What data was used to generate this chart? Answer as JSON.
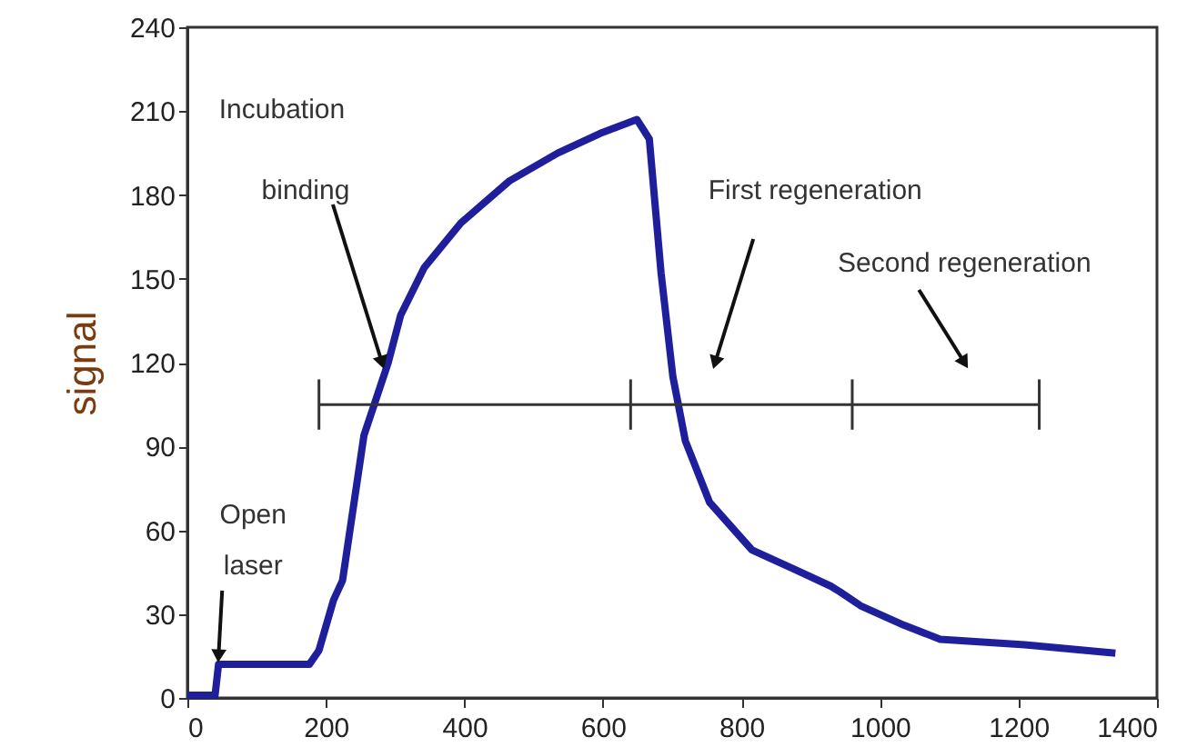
{
  "chart_data": {
    "type": "line",
    "ylabel": "signal",
    "xlim": [
      0,
      1400
    ],
    "xticks": [
      0,
      200,
      400,
      600,
      800,
      1000,
      1200,
      1400
    ],
    "ylim": [
      0,
      240
    ],
    "yticks": [
      0,
      30,
      60,
      90,
      120,
      150,
      180,
      210,
      240
    ],
    "grid": false,
    "legend": false,
    "marker": "none",
    "line_style": "solid",
    "series": [
      {
        "color": "#1f1f9c",
        "x": [
          0,
          40,
          45,
          100,
          176,
          190,
          211,
          224,
          255,
          290,
          308,
          342,
          395,
          465,
          535,
          596,
          649,
          667,
          684,
          701,
          719,
          754,
          815,
          877,
          929,
          942,
          972,
          1035,
          1087,
          1209,
          1340
        ],
        "values": [
          1,
          1,
          12,
          12,
          12,
          17,
          35,
          42,
          94,
          120,
          137,
          154,
          170,
          185,
          195,
          202,
          207,
          200,
          152,
          115,
          92,
          70,
          53,
          46,
          40,
          38,
          33,
          26,
          21,
          19,
          16
        ]
      },
      {
        "type": "line",
        "color": "#333333",
        "x": [
          190,
          640,
          960,
          1230
        ],
        "values": [
          105,
          105,
          105,
          105
        ],
        "errors": [
          9,
          9,
          9,
          9
        ]
      }
    ],
    "annotations": [
      "Incubation",
      {
        "text": "binding",
        "x": 281,
        "y": 120
      },
      {
        "text": "Open\nlaser",
        "x": 45,
        "y": 15
      },
      {
        "text": "First regeneration",
        "x": 762,
        "y": 120
      },
      {
        "text": "Second regeneration",
        "x": 1122,
        "y": 120
      }
    ]
  }
}
